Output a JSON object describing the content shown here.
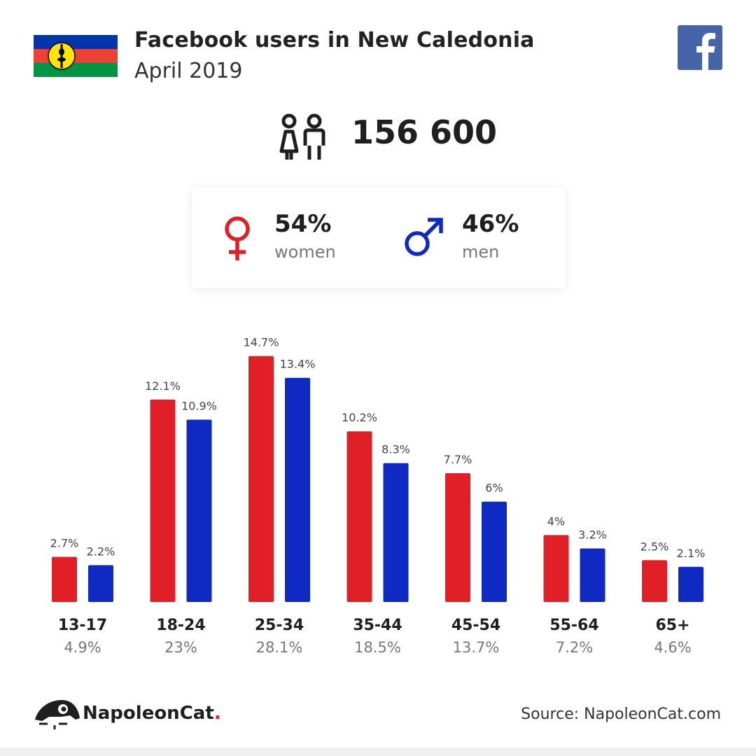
{
  "header": {
    "title": "Facebook users in New Caledonia",
    "subtitle": "April 2019",
    "flag_icon": "new-caledonia-flag-icon",
    "social_icon": "facebook-icon"
  },
  "summary": {
    "total_users": "156 600",
    "users_icon": "people-icon"
  },
  "gender": {
    "women": {
      "percent": "54%",
      "label": "women",
      "icon": "female-icon"
    },
    "men": {
      "percent": "46%",
      "label": "men",
      "icon": "male-icon"
    }
  },
  "colors": {
    "women": "#e01f26",
    "men": "#0f2ac3",
    "facebook": "#4565a8"
  },
  "chart_data": {
    "type": "bar",
    "categories": [
      "13-17",
      "18-24",
      "25-34",
      "35-44",
      "45-54",
      "55-64",
      "65+"
    ],
    "category_totals": [
      "4.9%",
      "23%",
      "28.1%",
      "18.5%",
      "13.7%",
      "7.2%",
      "4.6%"
    ],
    "series": [
      {
        "values": [
          2.7,
          12.1,
          14.7,
          10.2,
          7.7,
          4,
          2.5
        ],
        "labels": [
          "2.7%",
          "12.1%",
          "14.7%",
          "10.2%",
          "7.7%",
          "4%",
          "2.5%"
        ],
        "color": "#e01f26"
      },
      {
        "values": [
          2.2,
          10.9,
          13.4,
          8.3,
          6,
          3.2,
          2.1
        ],
        "labels": [
          "2.2%",
          "10.9%",
          "13.4%",
          "8.3%",
          "6%",
          "3.2%",
          "2.1%"
        ],
        "color": "#0f2ac3"
      }
    ],
    "title": "",
    "xlabel": "",
    "ylabel": "",
    "grid": false,
    "legend": "none"
  },
  "footer": {
    "brand_name": "NapoleonCat",
    "brand_dot": ".",
    "source": "Source: NapoleonCat.com"
  }
}
